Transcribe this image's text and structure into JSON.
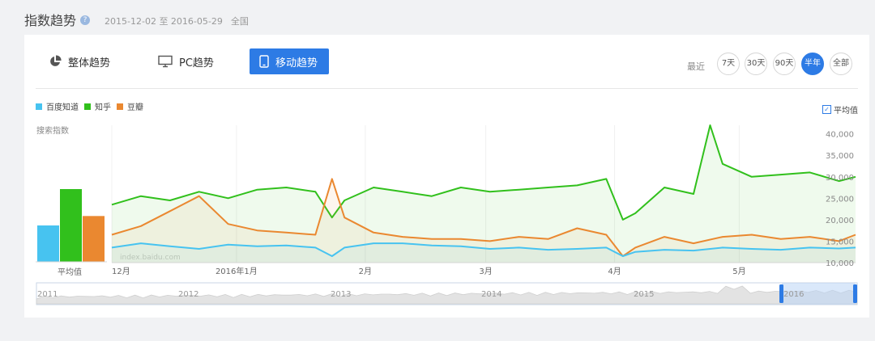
{
  "header": {
    "title": "指数趋势",
    "help_glyph": "?",
    "date_range": "2015-12-02 至 2016-05-29",
    "region": "全国"
  },
  "tabs": [
    {
      "label": "整体趋势",
      "icon": "pie-chart-icon",
      "active": false
    },
    {
      "label": "PC趋势",
      "icon": "monitor-icon",
      "active": false
    },
    {
      "label": "移动趋势",
      "icon": "tablet-icon",
      "active": true
    }
  ],
  "periods": {
    "label": "最近",
    "options": [
      "7天",
      "30天",
      "90天",
      "半年",
      "全部"
    ],
    "selected": "半年"
  },
  "average_toggle": {
    "label": "平均值",
    "checked": true
  },
  "colors": {
    "baidu_zhidao": "#47c3f0",
    "zhihu": "#31c01c",
    "douban": "#ea8830",
    "accent": "#2d7be5"
  },
  "chart_data": {
    "type": "line",
    "ylabel": "搜索指数",
    "ylim": [
      10000,
      42000
    ],
    "y_ticks": [
      10000,
      15000,
      20000,
      25000,
      30000,
      35000,
      40000
    ],
    "y_tick_labels": [
      "10,000",
      "15,000",
      "20,000",
      "25,000",
      "30,000",
      "35,000",
      "40,000"
    ],
    "x_ticks": [
      {
        "date": "2015-12-01",
        "label": "12月"
      },
      {
        "date": "2016-01-01",
        "label": "2016年1月"
      },
      {
        "date": "2016-02-01",
        "label": "2月"
      },
      {
        "date": "2016-03-01",
        "label": "3月"
      },
      {
        "date": "2016-04-01",
        "label": "4月"
      },
      {
        "date": "2016-05-01",
        "label": "5月"
      }
    ],
    "x_range": [
      "2015-12-02",
      "2016-05-29"
    ],
    "watermark": "index.baidu.com",
    "series": [
      {
        "name": "百度知道",
        "dates": [
          "2015-12-02",
          "2015-12-09",
          "2015-12-16",
          "2015-12-23",
          "2015-12-30",
          "2016-01-06",
          "2016-01-13",
          "2016-01-20",
          "2016-01-24",
          "2016-01-27",
          "2016-02-03",
          "2016-02-10",
          "2016-02-17",
          "2016-02-24",
          "2016-03-02",
          "2016-03-09",
          "2016-03-16",
          "2016-03-23",
          "2016-03-30",
          "2016-04-03",
          "2016-04-06",
          "2016-04-13",
          "2016-04-20",
          "2016-04-27",
          "2016-05-04",
          "2016-05-11",
          "2016-05-18",
          "2016-05-25",
          "2016-05-29"
        ],
        "values": [
          13500,
          14500,
          13800,
          13200,
          14200,
          13800,
          14000,
          13500,
          11500,
          13500,
          14500,
          14500,
          14000,
          13800,
          13200,
          13500,
          13000,
          13200,
          13500,
          11500,
          12500,
          13000,
          12800,
          13500,
          13200,
          13000,
          13500,
          13300,
          13500
        ]
      },
      {
        "name": "知乎",
        "dates": [
          "2015-12-02",
          "2015-12-09",
          "2015-12-16",
          "2015-12-23",
          "2015-12-30",
          "2016-01-06",
          "2016-01-13",
          "2016-01-20",
          "2016-01-24",
          "2016-01-27",
          "2016-02-03",
          "2016-02-10",
          "2016-02-17",
          "2016-02-24",
          "2016-03-02",
          "2016-03-09",
          "2016-03-16",
          "2016-03-23",
          "2016-03-30",
          "2016-04-03",
          "2016-04-06",
          "2016-04-13",
          "2016-04-20",
          "2016-04-24",
          "2016-04-27",
          "2016-05-04",
          "2016-05-11",
          "2016-05-18",
          "2016-05-25",
          "2016-05-29"
        ],
        "values": [
          23500,
          25500,
          24500,
          26500,
          25000,
          27000,
          27500,
          26500,
          20500,
          24500,
          27500,
          26500,
          25500,
          27500,
          26500,
          27000,
          27500,
          28000,
          29500,
          20000,
          21500,
          27500,
          26000,
          42000,
          33000,
          30000,
          30500,
          31000,
          29000,
          30000
        ]
      },
      {
        "name": "豆瓣",
        "dates": [
          "2015-12-02",
          "2015-12-09",
          "2015-12-16",
          "2015-12-23",
          "2015-12-30",
          "2016-01-06",
          "2016-01-13",
          "2016-01-20",
          "2016-01-24",
          "2016-01-27",
          "2016-02-03",
          "2016-02-10",
          "2016-02-17",
          "2016-02-24",
          "2016-03-02",
          "2016-03-09",
          "2016-03-16",
          "2016-03-23",
          "2016-03-30",
          "2016-04-03",
          "2016-04-06",
          "2016-04-13",
          "2016-04-20",
          "2016-04-27",
          "2016-05-04",
          "2016-05-11",
          "2016-05-18",
          "2016-05-25",
          "2016-05-29"
        ],
        "values": [
          16500,
          18500,
          22000,
          25500,
          19000,
          17500,
          17000,
          16500,
          29500,
          20500,
          17000,
          16000,
          15500,
          15500,
          15000,
          16000,
          15500,
          18000,
          16500,
          11500,
          13500,
          16000,
          14500,
          16000,
          16500,
          15500,
          16000,
          15000,
          16500
        ]
      }
    ],
    "averages": [
      {
        "name": "百度知道",
        "value": 13500
      },
      {
        "name": "知乎",
        "value": 27000
      },
      {
        "name": "豆瓣",
        "value": 17000
      }
    ],
    "average_axis_label": "平均值"
  },
  "timeline": {
    "year_labels": [
      "2011",
      "2012",
      "2013",
      "2014",
      "2015",
      "2016"
    ]
  }
}
